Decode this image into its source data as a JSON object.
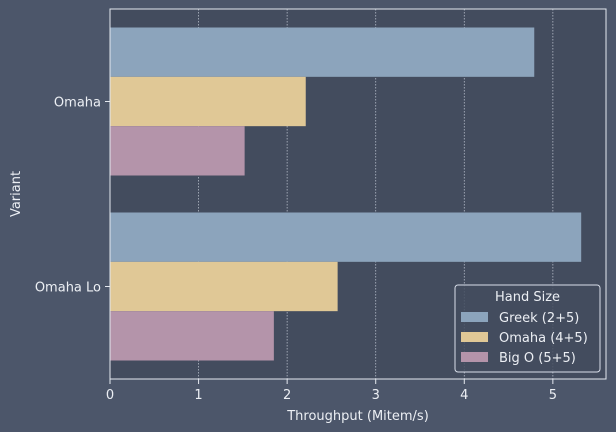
{
  "chart_data": {
    "type": "bar",
    "orientation": "horizontal",
    "categories": [
      "Omaha",
      "Omaha Lo"
    ],
    "series": [
      {
        "name": "Greek (2+5)",
        "values": [
          4.79,
          5.32
        ],
        "color": "#8ca4bc"
      },
      {
        "name": "Omaha (4+5)",
        "values": [
          2.21,
          2.57
        ],
        "color": "#e0c896"
      },
      {
        "name": "Big O (5+5)",
        "values": [
          1.52,
          1.85
        ],
        "color": "#b494aa"
      }
    ],
    "xlabel": "Throughput (Mitem/s)",
    "ylabel": "Variant",
    "xlim": [
      0,
      5.6
    ],
    "xticks": [
      0,
      1,
      2,
      3,
      4,
      5
    ],
    "grid": "x",
    "legend": {
      "title": "Hand Size",
      "position": "bottom-right"
    }
  },
  "colors": {
    "background": "#4c566a",
    "plot_background": "#434c5e",
    "text": "#eceff4",
    "axis": "#e5e9f0"
  }
}
